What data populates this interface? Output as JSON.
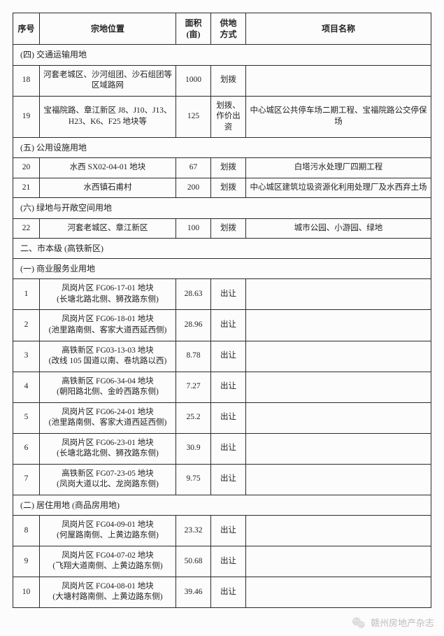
{
  "header": {
    "idx": "序号",
    "loc": "宗地位置",
    "area": "面积\n(亩)",
    "mode": "供地\n方式",
    "proj": "项目名称"
  },
  "sections": [
    {
      "title": "(四) 交通运输用地",
      "rows": [
        {
          "idx": "18",
          "loc": "河套老城区、沙河组团、沙石组团等区域路网",
          "area": "1000",
          "mode": "划拨",
          "proj": ""
        },
        {
          "idx": "19",
          "loc": "宝福院路、章江新区 J8、J10、J13、H23、K6、F25 地块等",
          "area": "125",
          "mode": "划拨、作价出资",
          "proj": "中心城区公共停车场二期工程、宝福院路公交停保场"
        }
      ]
    },
    {
      "title": "(五) 公用设施用地",
      "rows": [
        {
          "idx": "20",
          "loc": "水西 SX02-04-01 地块",
          "area": "67",
          "mode": "划拨",
          "proj": "白塔污水处理厂四期工程"
        },
        {
          "idx": "21",
          "loc": "水西镇石甫村",
          "area": "200",
          "mode": "划拨",
          "proj": "中心城区建筑垃圾资源化利用处理厂及水西弃土场"
        }
      ]
    },
    {
      "title": "(六) 绿地与开敞空间用地",
      "rows": [
        {
          "idx": "22",
          "loc": "河套老城区、章江新区",
          "area": "100",
          "mode": "划拨",
          "proj": "城市公园、小游园、绿地"
        }
      ]
    },
    {
      "title": "二、市本级 (高铁新区)",
      "rows": []
    },
    {
      "title": "(一) 商业服务业用地",
      "rows": [
        {
          "idx": "1",
          "loc": "凤岗片区 FG06-17-01 地块\n(长塘北路北侧、狮孜路东侧)",
          "area": "28.63",
          "mode": "出让",
          "proj": ""
        },
        {
          "idx": "2",
          "loc": "凤岗片区 FG06-18-01 地块\n(池里路南侧、客家大道西延西侧)",
          "area": "28.96",
          "mode": "出让",
          "proj": ""
        },
        {
          "idx": "3",
          "loc": "高铁新区 FG03-13-03 地块\n(改线 105 国道以南、卷坑路以西)",
          "area": "8.78",
          "mode": "出让",
          "proj": ""
        },
        {
          "idx": "4",
          "loc": "高铁新区 FG06-34-04 地块\n(朝阳路北侧、金岭西路东侧)",
          "area": "7.27",
          "mode": "出让",
          "proj": ""
        },
        {
          "idx": "5",
          "loc": "凤岗片区 FG06-24-01 地块\n(池里路南侧、客家大道西延西侧)",
          "area": "25.2",
          "mode": "出让",
          "proj": ""
        },
        {
          "idx": "6",
          "loc": "凤岗片区 FG06-23-01 地块\n(长塘北路北侧、狮孜路东侧)",
          "area": "30.9",
          "mode": "出让",
          "proj": ""
        },
        {
          "idx": "7",
          "loc": "高铁新区 FG07-23-05 地块\n(凤岗大道以北、龙岗路东侧)",
          "area": "9.75",
          "mode": "出让",
          "proj": ""
        }
      ]
    },
    {
      "title": "(二) 居住用地 (商品房用地)",
      "rows": [
        {
          "idx": "8",
          "loc": "凤岗片区 FG04-09-01 地块\n(何屋路南侧、上黄边路东侧)",
          "area": "23.32",
          "mode": "出让",
          "proj": ""
        },
        {
          "idx": "9",
          "loc": "凤岗片区 FG04-07-02 地块\n(飞翔大道南侧、上黄边路东侧)",
          "area": "50.68",
          "mode": "出让",
          "proj": ""
        },
        {
          "idx": "10",
          "loc": "凤岗片区 FG04-08-01 地块\n(大塘村路南侧、上黄边路东侧)",
          "area": "39.46",
          "mode": "出让",
          "proj": ""
        }
      ]
    }
  ],
  "watermark": {
    "text": "赣州房地产杂志"
  },
  "style": {
    "page_bg": "#fcfcfc",
    "border_color": "#2a2a2a",
    "text_color": "#222222",
    "watermark_color": "#bdbdbd",
    "header_font_size_pt": 9,
    "cell_font_size_pt": 8.6
  }
}
